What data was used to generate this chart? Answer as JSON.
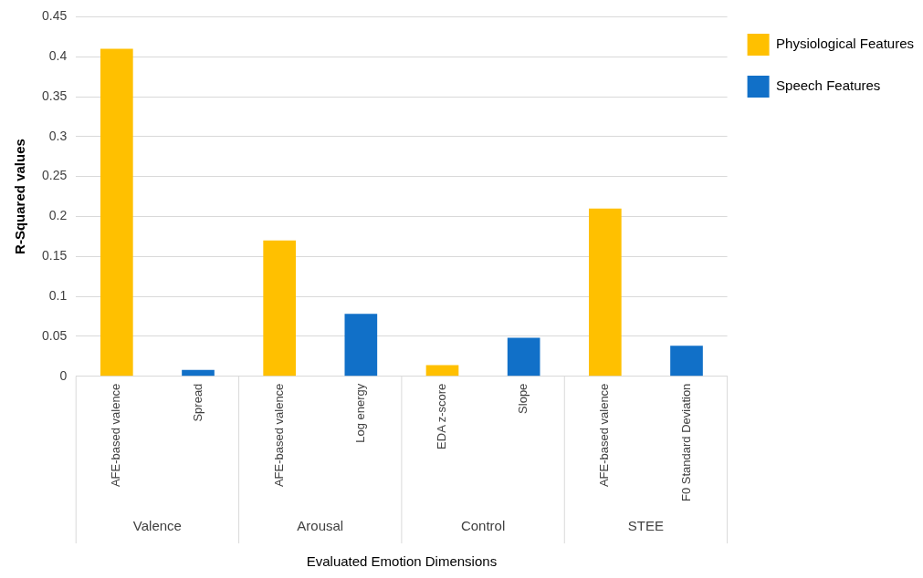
{
  "chart_data": {
    "type": "bar",
    "xlabel": "Evaluated Emotion Dimensions",
    "ylabel": "R-Squared values",
    "categories": [
      "AFE-based valence",
      "Spread",
      "AFE-based valence",
      "Log energy",
      "EDA z-score",
      "Slope",
      "AFE-based valence",
      "F0 Standard Deviation"
    ],
    "series": [
      {
        "name": "Physiological Features",
        "color": "#ffc000",
        "values": [
          0.41,
          null,
          0.17,
          null,
          0.014,
          null,
          0.21,
          null
        ]
      },
      {
        "name": "Speech Features",
        "color": "#1170c8",
        "values": [
          null,
          0.008,
          null,
          0.078,
          null,
          0.048,
          null,
          0.038
        ]
      }
    ],
    "ylim": [
      0,
      0.45
    ],
    "yticks": [
      0,
      0.05,
      0.1,
      0.15,
      0.2,
      0.25,
      0.3,
      0.35,
      0.4,
      0.45
    ],
    "grid": "y",
    "legend": "top right",
    "annotations": [
      "Valence",
      "Arousal",
      "Control",
      "STEE"
    ]
  }
}
